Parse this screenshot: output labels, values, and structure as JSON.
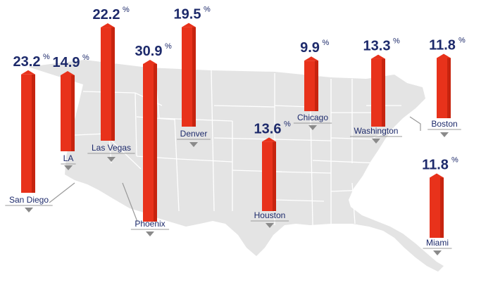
{
  "chart_data": {
    "type": "bar",
    "title": "",
    "unit": "%",
    "colors": {
      "bar": "#e8321b",
      "bar_edge": "#c7240f",
      "map": "#e4e4e4",
      "state_border": "#ffffff",
      "leader": "#9a9a9a",
      "text": "#1d2a6b"
    },
    "categories": [
      "San Diego",
      "LA",
      "Las Vegas",
      "Phoenix",
      "Denver",
      "Houston",
      "Chicago",
      "Washington",
      "Boston",
      "Miami"
    ],
    "values": [
      23.2,
      14.9,
      22.2,
      30.9,
      19.5,
      13.6,
      9.9,
      13.3,
      11.8,
      11.8
    ],
    "value_labels": [
      "23.2",
      "14.9",
      "22.2",
      "30.9",
      "19.5",
      "13.6",
      "9.9",
      "13.3",
      "11.8",
      "11.8"
    ]
  }
}
